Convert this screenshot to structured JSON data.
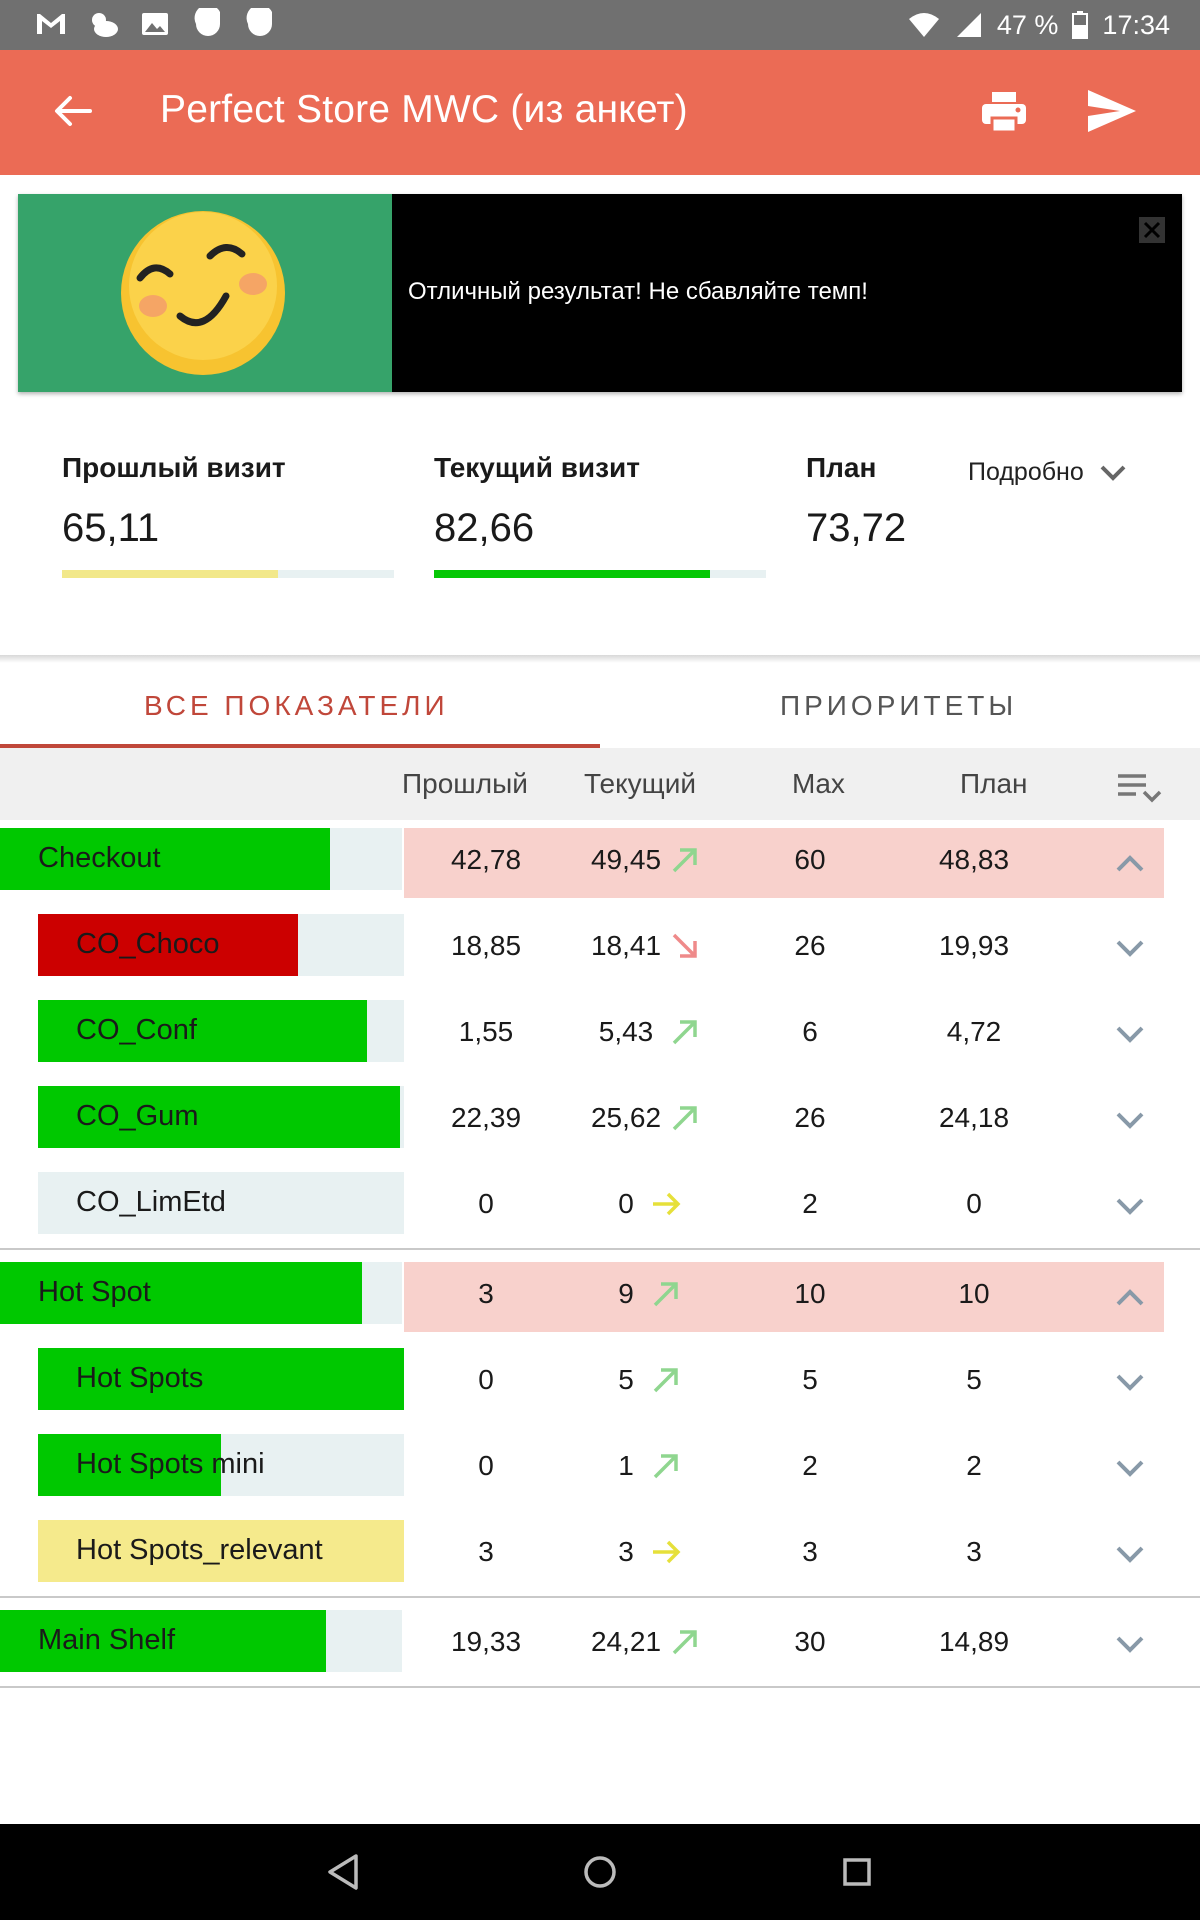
{
  "status_bar": {
    "battery": "47 %",
    "time": "17:34",
    "colors": {
      "bg": "#707070"
    }
  },
  "app_bar": {
    "title": "Perfect Store MWC (из анкет)",
    "icons": [
      "back-arrow-icon",
      "print-icon",
      "send-icon"
    ],
    "color": "#eb6b55"
  },
  "banner": {
    "message": "Отличный результат! Не сбавляйте темп!",
    "icon": "smiling-face-icon",
    "bg_left": "#36a36a"
  },
  "summary": {
    "previous": {
      "label": "Прошлый визит",
      "value": "65,11",
      "bar_fraction": 0.65,
      "bar_color": "#f2e88a"
    },
    "current": {
      "label": "Текущий визит",
      "value": "82,66",
      "bar_fraction": 0.83,
      "bar_color": "#06c706"
    },
    "plan": {
      "label": "План",
      "value": "73,72"
    },
    "details_label": "Подробно"
  },
  "tabs": [
    {
      "label": "ВСЕ ПОКАЗАТЕЛИ",
      "active": true
    },
    {
      "label": "ПРИОРИТЕТЫ",
      "active": false
    }
  ],
  "table": {
    "columns": [
      "Прошлый",
      "Текущий",
      "Max",
      "План"
    ],
    "rows": [
      {
        "name": "Checkout",
        "level": 0,
        "fill": 0.82,
        "color": "#00c800",
        "prev": "42,78",
        "cur": "49,45",
        "trend": "up",
        "max": "60",
        "plan": "48,83",
        "expanded": true,
        "highlight": true
      },
      {
        "name": "CO_Choco",
        "level": 1,
        "fill": 0.71,
        "color": "#cc0000",
        "prev": "18,85",
        "cur": "18,41",
        "trend": "down",
        "max": "26",
        "plan": "19,93",
        "expanded": false,
        "highlight": false
      },
      {
        "name": "CO_Conf",
        "level": 1,
        "fill": 0.9,
        "color": "#00c800",
        "prev": "1,55",
        "cur": "5,43",
        "trend": "up",
        "max": "6",
        "plan": "4,72",
        "expanded": false,
        "highlight": false
      },
      {
        "name": "CO_Gum",
        "level": 1,
        "fill": 0.99,
        "color": "#00c800",
        "prev": "22,39",
        "cur": "25,62",
        "trend": "up",
        "max": "26",
        "plan": "24,18",
        "expanded": false,
        "highlight": false
      },
      {
        "name": "CO_LimEtd",
        "level": 1,
        "fill": 0,
        "color": "#00c800",
        "prev": "0",
        "cur": "0",
        "trend": "flat",
        "max": "2",
        "plan": "0",
        "expanded": false,
        "highlight": false
      },
      {
        "name": "Hot Spot",
        "level": 0,
        "fill": 0.9,
        "color": "#00c800",
        "prev": "3",
        "cur": "9",
        "trend": "up",
        "max": "10",
        "plan": "10",
        "expanded": true,
        "highlight": true
      },
      {
        "name": "Hot Spots",
        "level": 1,
        "fill": 1.0,
        "color": "#00c800",
        "prev": "0",
        "cur": "5",
        "trend": "up",
        "max": "5",
        "plan": "5",
        "expanded": false,
        "highlight": false
      },
      {
        "name": "Hot Spots mini",
        "level": 1,
        "fill": 0.5,
        "color": "#00c800",
        "prev": "0",
        "cur": "1",
        "trend": "up",
        "max": "2",
        "plan": "2",
        "expanded": false,
        "highlight": false
      },
      {
        "name": "Hot Spots_relevant",
        "level": 1,
        "fill": 1.0,
        "color": "#f5ea8c",
        "prev": "3",
        "cur": "3",
        "trend": "flat",
        "max": "3",
        "plan": "3",
        "expanded": false,
        "highlight": false
      },
      {
        "name": "Main Shelf",
        "level": 0,
        "fill": 0.81,
        "color": "#00c800",
        "prev": "19,33",
        "cur": "24,21",
        "trend": "up",
        "max": "30",
        "plan": "14,89",
        "expanded": false,
        "highlight": false
      }
    ],
    "trend_colors": {
      "up": "#8fd68f",
      "down": "#ef8a8a",
      "flat": "#e6e03a"
    }
  }
}
